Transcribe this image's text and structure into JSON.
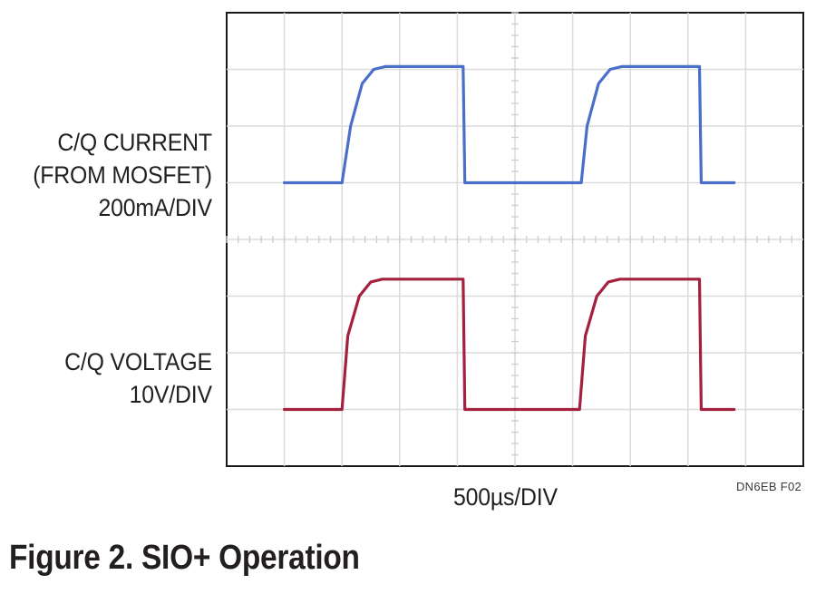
{
  "chart_data": {
    "type": "line",
    "title": "",
    "caption": "Figure 2. SIO+ Operation",
    "figure_code": "DN6EB F02",
    "xlabel": "500µs/DIV",
    "x_unit": "µs",
    "x_divisions": 10,
    "x_per_div": 500,
    "xlim": [
      0,
      5000
    ],
    "y_divisions": 8,
    "grid": true,
    "series": [
      {
        "name_lines": [
          "C/Q CURRENT",
          "(FROM MOSFET)",
          "200mA/DIV"
        ],
        "color": "#4a6fc9",
        "baseline_div": 5.0,
        "high_div": 7.05,
        "scale": "200mA/DIV",
        "points_div": [
          [
            1.0,
            5.0
          ],
          [
            2.0,
            5.0
          ],
          [
            2.15,
            6.0
          ],
          [
            2.35,
            6.75
          ],
          [
            2.55,
            7.0
          ],
          [
            2.75,
            7.05
          ],
          [
            4.1,
            7.05
          ],
          [
            4.13,
            5.0
          ],
          [
            6.15,
            5.0
          ],
          [
            6.25,
            6.0
          ],
          [
            6.45,
            6.75
          ],
          [
            6.65,
            7.0
          ],
          [
            6.85,
            7.05
          ],
          [
            8.2,
            7.05
          ],
          [
            8.23,
            5.0
          ],
          [
            8.8,
            5.0
          ]
        ]
      },
      {
        "name_lines": [
          "C/Q VOLTAGE",
          "10V/DIV"
        ],
        "color": "#a3203f",
        "baseline_div": 1.0,
        "high_div": 3.3,
        "scale": "10V/DIV",
        "points_div": [
          [
            1.0,
            1.0
          ],
          [
            2.0,
            1.0
          ],
          [
            2.1,
            2.3
          ],
          [
            2.3,
            3.0
          ],
          [
            2.5,
            3.25
          ],
          [
            2.7,
            3.3
          ],
          [
            4.1,
            3.3
          ],
          [
            4.13,
            1.0
          ],
          [
            6.12,
            1.0
          ],
          [
            6.22,
            2.3
          ],
          [
            6.42,
            3.0
          ],
          [
            6.62,
            3.25
          ],
          [
            6.82,
            3.3
          ],
          [
            8.2,
            3.3
          ],
          [
            8.23,
            1.0
          ],
          [
            8.8,
            1.0
          ]
        ]
      }
    ]
  }
}
